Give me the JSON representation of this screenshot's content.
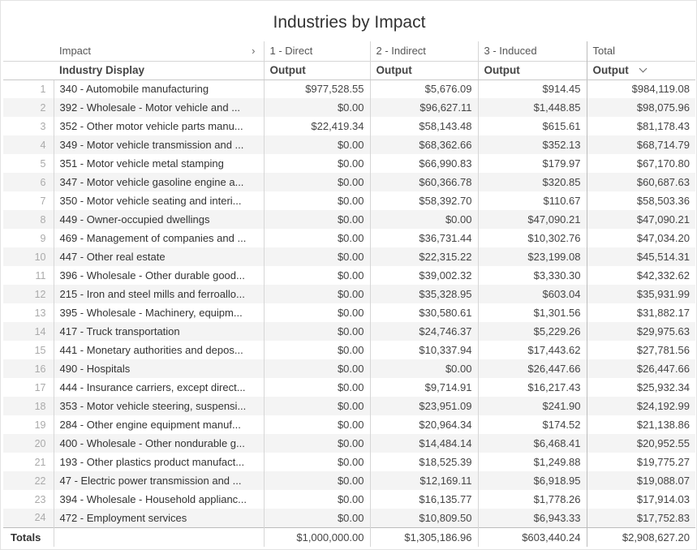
{
  "title": "Industries by Impact",
  "header": {
    "dimension_label": "Impact",
    "row_label": "Industry Display",
    "columns": [
      {
        "group": "1 - Direct",
        "measure": "Output"
      },
      {
        "group": "2 - Indirect",
        "measure": "Output"
      },
      {
        "group": "3 - Induced",
        "measure": "Output"
      },
      {
        "group": "Total",
        "measure": "Output"
      }
    ],
    "expand_icon": "chevron-right-icon",
    "sort_icon": "chevron-down-icon"
  },
  "rows": [
    {
      "index": "1",
      "name": "340 - Automobile manufacturing",
      "direct": "$977,528.55",
      "indirect": "$5,676.09",
      "induced": "$914.45",
      "total": "$984,119.08"
    },
    {
      "index": "2",
      "name": "392 - Wholesale - Motor vehicle and ...",
      "direct": "$0.00",
      "indirect": "$96,627.11",
      "induced": "$1,448.85",
      "total": "$98,075.96"
    },
    {
      "index": "3",
      "name": "352 - Other motor vehicle parts manu...",
      "direct": "$22,419.34",
      "indirect": "$58,143.48",
      "induced": "$615.61",
      "total": "$81,178.43"
    },
    {
      "index": "4",
      "name": "349 - Motor vehicle transmission and ...",
      "direct": "$0.00",
      "indirect": "$68,362.66",
      "induced": "$352.13",
      "total": "$68,714.79"
    },
    {
      "index": "5",
      "name": "351 - Motor vehicle metal stamping",
      "direct": "$0.00",
      "indirect": "$66,990.83",
      "induced": "$179.97",
      "total": "$67,170.80"
    },
    {
      "index": "6",
      "name": "347 - Motor vehicle gasoline engine a...",
      "direct": "$0.00",
      "indirect": "$60,366.78",
      "induced": "$320.85",
      "total": "$60,687.63"
    },
    {
      "index": "7",
      "name": "350 - Motor vehicle seating and interi...",
      "direct": "$0.00",
      "indirect": "$58,392.70",
      "induced": "$110.67",
      "total": "$58,503.36"
    },
    {
      "index": "8",
      "name": "449 - Owner-occupied dwellings",
      "direct": "$0.00",
      "indirect": "$0.00",
      "induced": "$47,090.21",
      "total": "$47,090.21"
    },
    {
      "index": "9",
      "name": "469 - Management of companies and ...",
      "direct": "$0.00",
      "indirect": "$36,731.44",
      "induced": "$10,302.76",
      "total": "$47,034.20"
    },
    {
      "index": "10",
      "name": "447 - Other real estate",
      "direct": "$0.00",
      "indirect": "$22,315.22",
      "induced": "$23,199.08",
      "total": "$45,514.31"
    },
    {
      "index": "11",
      "name": "396 - Wholesale - Other durable good...",
      "direct": "$0.00",
      "indirect": "$39,002.32",
      "induced": "$3,330.30",
      "total": "$42,332.62"
    },
    {
      "index": "12",
      "name": "215 - Iron and steel mills and ferroallo...",
      "direct": "$0.00",
      "indirect": "$35,328.95",
      "induced": "$603.04",
      "total": "$35,931.99"
    },
    {
      "index": "13",
      "name": "395 - Wholesale - Machinery, equipm...",
      "direct": "$0.00",
      "indirect": "$30,580.61",
      "induced": "$1,301.56",
      "total": "$31,882.17"
    },
    {
      "index": "14",
      "name": "417 - Truck transportation",
      "direct": "$0.00",
      "indirect": "$24,746.37",
      "induced": "$5,229.26",
      "total": "$29,975.63"
    },
    {
      "index": "15",
      "name": "441 - Monetary authorities and depos...",
      "direct": "$0.00",
      "indirect": "$10,337.94",
      "induced": "$17,443.62",
      "total": "$27,781.56"
    },
    {
      "index": "16",
      "name": "490 - Hospitals",
      "direct": "$0.00",
      "indirect": "$0.00",
      "induced": "$26,447.66",
      "total": "$26,447.66"
    },
    {
      "index": "17",
      "name": "444 - Insurance carriers, except direct...",
      "direct": "$0.00",
      "indirect": "$9,714.91",
      "induced": "$16,217.43",
      "total": "$25,932.34"
    },
    {
      "index": "18",
      "name": "353 - Motor vehicle steering, suspensi...",
      "direct": "$0.00",
      "indirect": "$23,951.09",
      "induced": "$241.90",
      "total": "$24,192.99"
    },
    {
      "index": "19",
      "name": "284 - Other engine equipment manuf...",
      "direct": "$0.00",
      "indirect": "$20,964.34",
      "induced": "$174.52",
      "total": "$21,138.86"
    },
    {
      "index": "20",
      "name": "400 - Wholesale - Other nondurable g...",
      "direct": "$0.00",
      "indirect": "$14,484.14",
      "induced": "$6,468.41",
      "total": "$20,952.55"
    },
    {
      "index": "21",
      "name": "193 - Other plastics product manufact...",
      "direct": "$0.00",
      "indirect": "$18,525.39",
      "induced": "$1,249.88",
      "total": "$19,775.27"
    },
    {
      "index": "22",
      "name": "47 - Electric power transmission and ...",
      "direct": "$0.00",
      "indirect": "$12,169.11",
      "induced": "$6,918.95",
      "total": "$19,088.07"
    },
    {
      "index": "23",
      "name": "394 - Wholesale - Household applianc...",
      "direct": "$0.00",
      "indirect": "$16,135.77",
      "induced": "$1,778.26",
      "total": "$17,914.03"
    },
    {
      "index": "24",
      "name": "472 - Employment services",
      "direct": "$0.00",
      "indirect": "$10,809.50",
      "induced": "$6,943.33",
      "total": "$17,752.83"
    }
  ],
  "totals": {
    "label": "Totals",
    "direct": "$1,000,000.00",
    "indirect": "$1,305,186.96",
    "induced": "$603,440.24",
    "total": "$2,908,627.20"
  }
}
